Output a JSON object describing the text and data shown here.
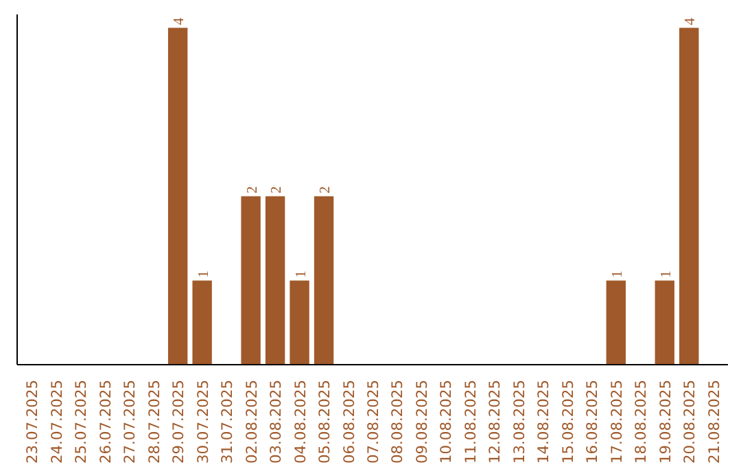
{
  "chart_data": {
    "type": "bar",
    "categories": [
      "23.07.2025",
      "24.07.2025",
      "25.07.2025",
      "26.07.2025",
      "27.07.2025",
      "28.07.2025",
      "29.07.2025",
      "30.07.2025",
      "31.07.2025",
      "02.08.2025",
      "03.08.2025",
      "04.08.2025",
      "05.08.2025",
      "06.08.2025",
      "07.08.2025",
      "08.08.2025",
      "09.08.2025",
      "10.08.2025",
      "11.08.2025",
      "12.08.2025",
      "13.08.2025",
      "14.08.2025",
      "15.08.2025",
      "16.08.2025",
      "17.08.2025",
      "18.08.2025",
      "19.08.2025",
      "20.08.2025",
      "21.08.2025"
    ],
    "values": [
      0,
      0,
      0,
      0,
      0,
      0,
      4,
      1,
      0,
      2,
      2,
      1,
      2,
      0,
      0,
      0,
      0,
      0,
      0,
      0,
      0,
      0,
      0,
      0,
      1,
      0,
      1,
      4,
      0
    ],
    "value_labels": [
      null,
      null,
      null,
      null,
      null,
      null,
      "4",
      "1",
      null,
      "2",
      "2",
      "1",
      "2",
      null,
      null,
      null,
      null,
      null,
      null,
      null,
      null,
      null,
      null,
      null,
      "1",
      null,
      "1",
      "4",
      null
    ],
    "color": "#a0592a",
    "ylim": [
      0,
      4.16
    ],
    "tick_labels": "x",
    "grid": false
  }
}
